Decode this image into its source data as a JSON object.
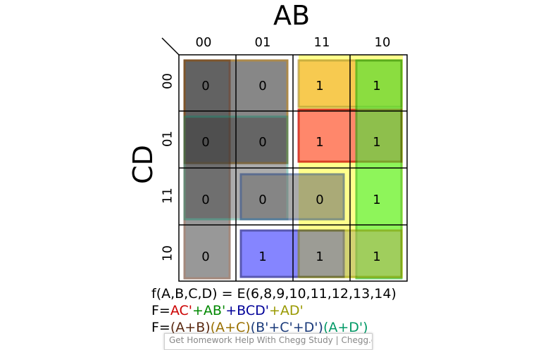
{
  "variables": {
    "columns": "AB",
    "rows": "CD"
  },
  "column_codes": [
    "00",
    "01",
    "11",
    "10"
  ],
  "row_codes": [
    "00",
    "01",
    "11",
    "10"
  ],
  "cells": [
    [
      "0",
      "0",
      "1",
      "1"
    ],
    [
      "0",
      "0",
      "1",
      "1"
    ],
    [
      "0",
      "0",
      "0",
      "1"
    ],
    [
      "0",
      "1",
      "1",
      "1"
    ]
  ],
  "function_line": "f(A,B,C,D) = E(6,8,9,10,11,12,13,14)",
  "sop": {
    "prefix": "F=",
    "terms": [
      {
        "text": "AC'",
        "color": "#cc0000"
      },
      {
        "text": "+AB'",
        "color": "#008800"
      },
      {
        "text": "+BCD'",
        "color": "#000099"
      },
      {
        "text": "+AD'",
        "color": "#999900"
      }
    ]
  },
  "pos": {
    "prefix": "F=",
    "terms": [
      {
        "text": "(A+B)",
        "color": "#5a2a12"
      },
      {
        "text": "(A+C)",
        "color": "#9a7000"
      },
      {
        "text": "(B'+C'+D')",
        "color": "#1a3a7a"
      },
      {
        "text": "(A+D')",
        "color": "#009966"
      }
    ]
  },
  "watermark": "Get Homework Help With Chegg Study | Chegg.com - Search Chegg"
}
